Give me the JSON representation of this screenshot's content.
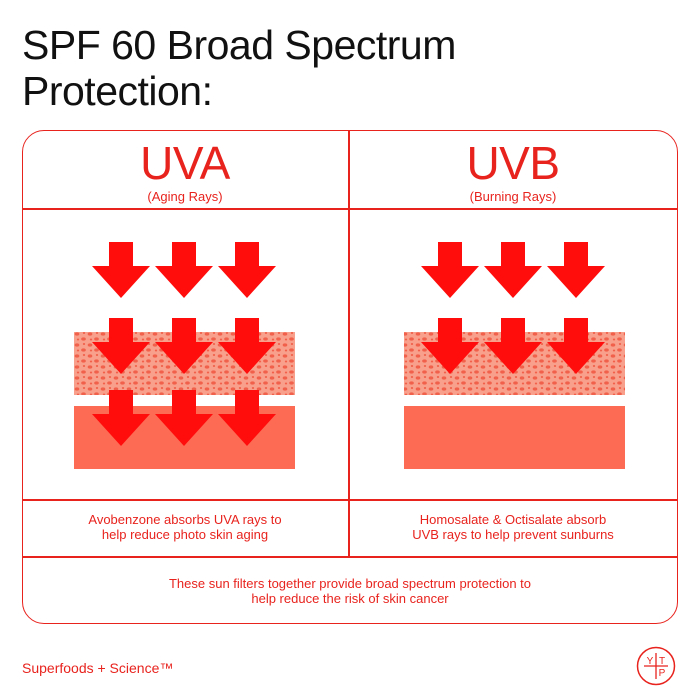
{
  "title": {
    "line1": "SPF 60 Broad Spectrum",
    "line2": "Protection:"
  },
  "columns": [
    {
      "heading": "UVA",
      "subheading": "(Aging Rays)",
      "description": [
        "Avobenzone absorbs UVA rays to",
        "help reduce photo skin aging"
      ],
      "arrow_rows": 3
    },
    {
      "heading": "UVB",
      "subheading": "(Burning Rays)",
      "description": [
        "Homosalate & Octisalate absorb",
        "UVB rays to help prevent sunburns"
      ],
      "arrow_rows": 2
    }
  ],
  "footer_note": [
    "These sun filters together provide broad spectrum protection to",
    "help reduce the risk of skin cancer"
  ],
  "brand": "Superfoods + Science™",
  "logo_letters": [
    "Y",
    "T",
    "P"
  ],
  "colors": {
    "accent": "#e8231e",
    "arrow": "#ff0d0d",
    "dotted_layer_bg": "#f9a08c",
    "dots": "#f0604a",
    "solid_layer": "#fd6b55",
    "title": "#111111"
  }
}
